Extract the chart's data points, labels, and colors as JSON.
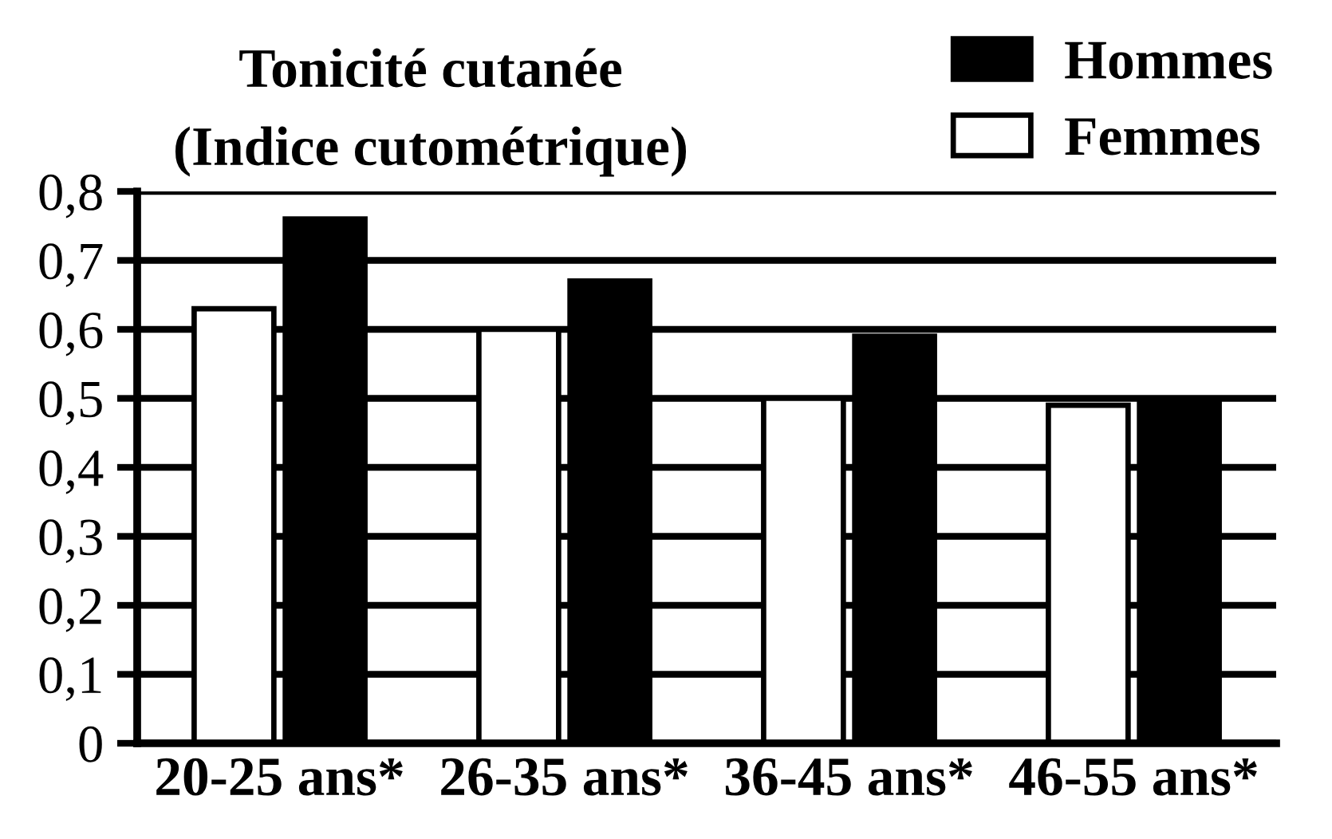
{
  "chart_data": {
    "type": "bar",
    "title": "Tonicité cutanée",
    "subtitle": "(Indice cutométrique)",
    "categories": [
      "20-25 ans*",
      "26-35 ans*",
      "36-45 ans*",
      "46-55 ans*"
    ],
    "series": [
      {
        "name": "Femmes",
        "color": "#ffffff",
        "values": [
          0.63,
          0.6,
          0.5,
          0.49
        ]
      },
      {
        "name": "Hommes",
        "color": "#000000",
        "values": [
          0.76,
          0.67,
          0.59,
          0.5
        ]
      }
    ],
    "ylim": [
      0,
      0.8
    ],
    "yticks": [
      0,
      {
        "value": 0.1,
        "label": "0,1"
      },
      {
        "value": 0.2,
        "label": "0,2"
      },
      {
        "value": 0.3,
        "label": "0,3"
      },
      {
        "value": 0.4,
        "label": "0,4"
      },
      {
        "value": 0.5,
        "label": "0,5"
      },
      {
        "value": 0.6,
        "label": "0,6"
      },
      {
        "value": 0.7,
        "label": "0,7"
      },
      {
        "value": 0.8,
        "label": "0,8"
      }
    ],
    "grid": "y",
    "legend": "top right"
  }
}
